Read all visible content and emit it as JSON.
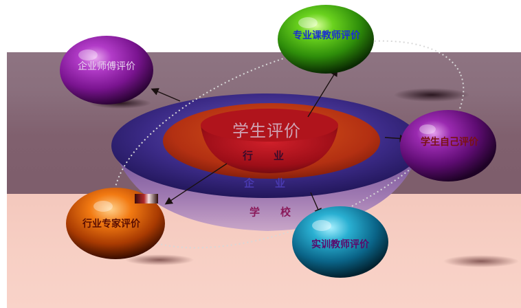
{
  "center": {
    "title": "学生评价"
  },
  "layers": [
    {
      "id": "hangye",
      "label": "行业"
    },
    {
      "id": "qiye",
      "label": "企业"
    },
    {
      "id": "xuexiao",
      "label": "学校"
    }
  ],
  "spheres": [
    {
      "id": "qiye_shifu",
      "label": "企业师傅评价",
      "color": "#8a1aa8"
    },
    {
      "id": "zhuanye_ke",
      "label": "专业课教师评价",
      "color": "#3fb31a"
    },
    {
      "id": "xuesheng_ziji",
      "label": "学生自己评价",
      "color": "#7a1f86"
    },
    {
      "id": "hangye_zhuanjia",
      "label": "行业专家评价",
      "color": "#d85a0a"
    },
    {
      "id": "shixun_jiaoshi",
      "label": "实训教师评价",
      "color": "#1a8aa8"
    }
  ]
}
